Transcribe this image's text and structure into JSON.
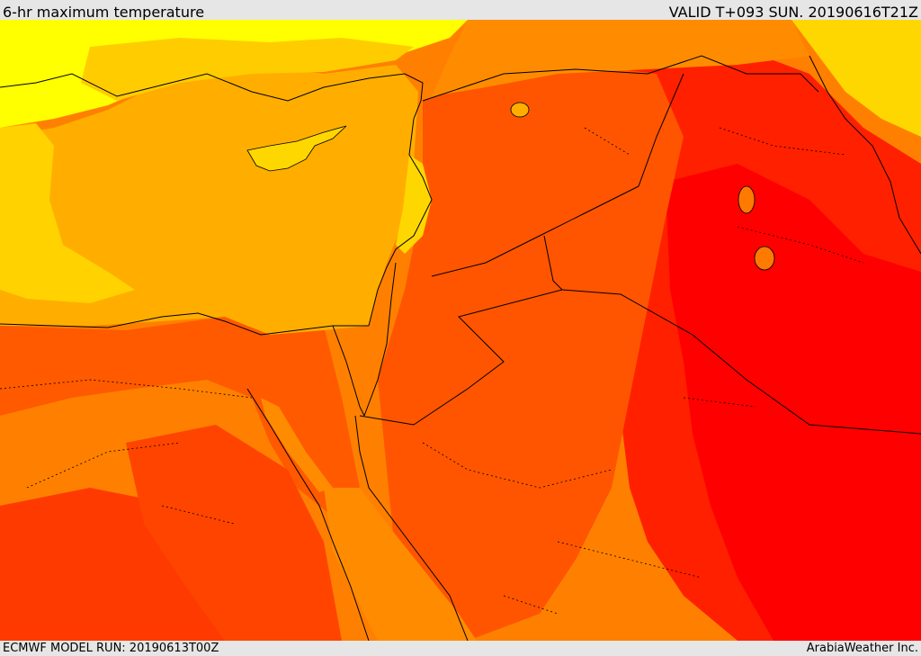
{
  "header": {
    "title": "6-hr maximum temperature",
    "valid": "VALID T+093 SUN. 20190616T21Z"
  },
  "footer": {
    "model_run": "ECMWF MODEL RUN: 20190613T00Z",
    "brand": "ArabiaWeather Inc."
  },
  "colors": {
    "light_yellow": "#ffff00",
    "gold": "#ffd700",
    "sea_orange": "#ffae00",
    "orange": "#ff8c00",
    "dark_orange": "#ff5a00",
    "red_orange": "#ff3c00",
    "red": "#ff1e00",
    "pure_red": "#ff0000",
    "line": "#000000"
  }
}
